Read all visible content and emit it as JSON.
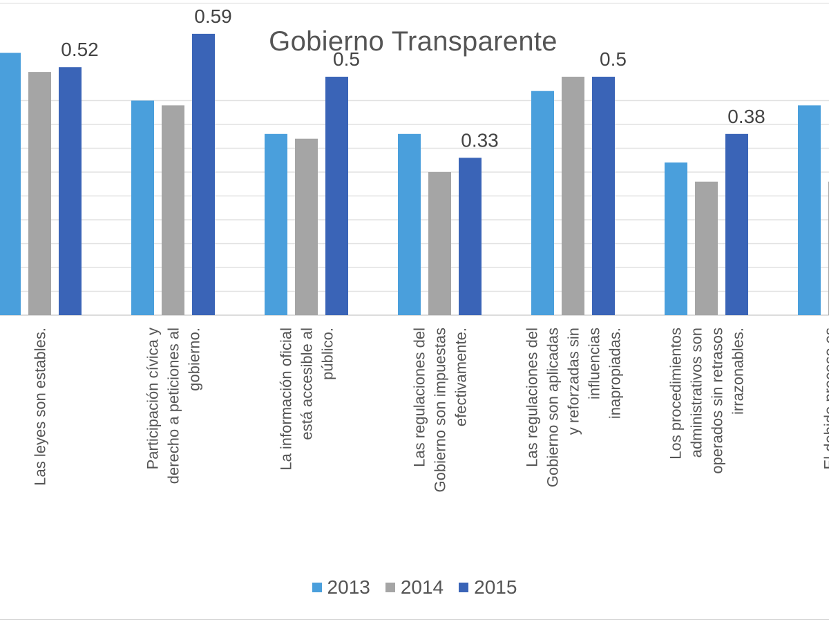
{
  "chart_data": {
    "type": "bar",
    "title": "Gobierno Transparente",
    "categories": [
      "Las leyes son estables.",
      "Participación cívica y derecho a peticiones al gobierno.",
      "La información oficial está accesible al público.",
      "Las regulaciones del Gobierno son impuestas efectivamente.",
      "Las regulaciones del Gobierno son aplicadas y reforzadas sin influencias inapropiadas.",
      "Los procedimientos administrativos son operados sin retrasos irrazonables.",
      "El debido proceso es respetado en los"
    ],
    "series": [
      {
        "name": "2013",
        "color": "#4a9fdc",
        "values": [
          0.55,
          0.45,
          0.38,
          0.38,
          0.47,
          0.32,
          0.44
        ]
      },
      {
        "name": "2014",
        "color": "#a5a5a5",
        "values": [
          0.51,
          0.44,
          0.37,
          0.3,
          0.5,
          0.28,
          0.28
        ]
      },
      {
        "name": "2015",
        "color": "#3a64b7",
        "values": [
          0.52,
          0.59,
          0.5,
          0.33,
          0.5,
          0.38,
          null
        ]
      }
    ],
    "data_labels": [
      {
        "category_index": 0,
        "series_index": 2,
        "text": "0.52"
      },
      {
        "category_index": 1,
        "series_index": 2,
        "text": "0.59"
      },
      {
        "category_index": 2,
        "series_index": 2,
        "text": "0.5"
      },
      {
        "category_index": 3,
        "series_index": 2,
        "text": "0.33"
      },
      {
        "category_index": 4,
        "series_index": 2,
        "text": "0.5"
      },
      {
        "category_index": 5,
        "series_index": 2,
        "text": "0.38"
      }
    ],
    "ylim": [
      0,
      1
    ],
    "grid": true,
    "legend_position": "bottom"
  }
}
